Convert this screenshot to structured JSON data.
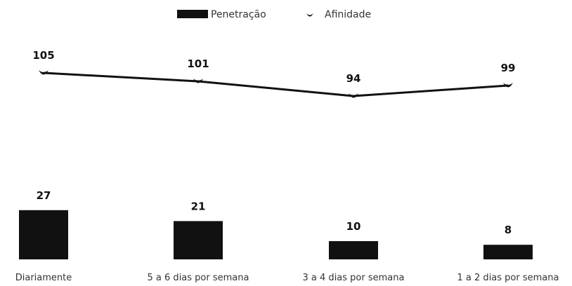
{
  "chart_data": {
    "type": "bar",
    "categories": [
      "Diariamente",
      "5 a 6 dias por semana",
      "3 a 4 dias por semana",
      "1 a 2 dias por semana"
    ],
    "series": [
      {
        "name": "Penetração",
        "type": "bar",
        "values": [
          27,
          21,
          10,
          8
        ],
        "color": "#111111"
      },
      {
        "name": "Afinidade",
        "type": "line",
        "values": [
          105,
          101,
          94,
          99
        ],
        "color": "#111111"
      }
    ],
    "legend": {
      "placement": "top-center"
    },
    "grid": false
  }
}
